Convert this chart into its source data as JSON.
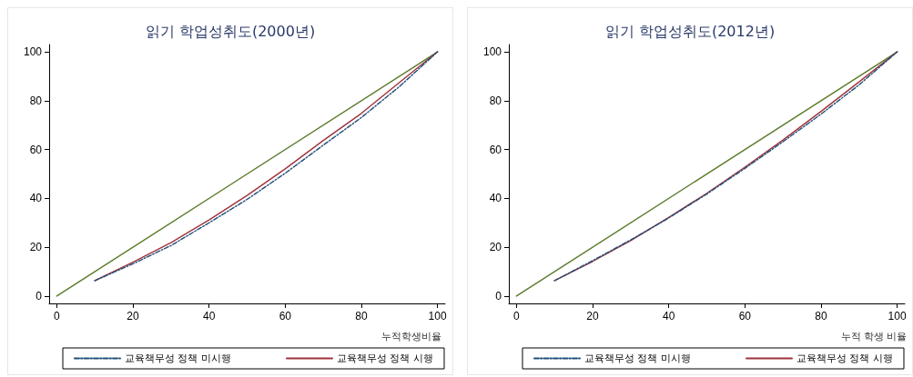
{
  "chart_data": [
    {
      "type": "line",
      "title": "읽기 학업성취도(2000년)",
      "xlabel": "누적학생비율",
      "xlim": [
        -2,
        102
      ],
      "ylim": [
        -3,
        103
      ],
      "xticks": [
        0,
        20,
        40,
        60,
        80,
        100
      ],
      "yticks": [
        0,
        20,
        40,
        60,
        80,
        100
      ],
      "grid": false,
      "legend": "bottom",
      "marker": "none",
      "series": [
        {
          "color": "#5a7a2a",
          "line_style": "solid",
          "x": [
            0,
            100
          ],
          "values": [
            0,
            100
          ]
        },
        {
          "name": "교육책무성 정책 미시행",
          "color": "#1f4e79",
          "line_style": "dashed",
          "x": [
            10,
            20,
            30,
            40,
            50,
            60,
            70,
            80,
            90,
            100
          ],
          "values": [
            6.3,
            13.2,
            20.7,
            30.0,
            39.6,
            50.3,
            61.8,
            73.1,
            85.8,
            100
          ]
        },
        {
          "name": "교육책무성 정책 시행",
          "color": "#a0323a",
          "line_style": "solid",
          "x": [
            10,
            20,
            30,
            40,
            50,
            60,
            70,
            80,
            90,
            100
          ],
          "values": [
            6.3,
            13.9,
            21.9,
            31.2,
            41.2,
            52.1,
            63.7,
            74.8,
            87.5,
            100
          ]
        }
      ]
    },
    {
      "type": "line",
      "title": "읽기 학업성취도(2012년)",
      "xlabel": "누적 학생 비율",
      "xlim": [
        -2,
        102
      ],
      "ylim": [
        -3,
        103
      ],
      "xticks": [
        0,
        20,
        40,
        60,
        80,
        100
      ],
      "yticks": [
        0,
        20,
        40,
        60,
        80,
        100
      ],
      "grid": false,
      "legend": "bottom",
      "marker": "none",
      "series": [
        {
          "color": "#5a7a2a",
          "line_style": "solid",
          "x": [
            0,
            100
          ],
          "values": [
            0,
            100
          ]
        },
        {
          "name": "교육책무성 정책 미시행",
          "color": "#1f4e79",
          "line_style": "dashed",
          "x": [
            10,
            20,
            30,
            40,
            50,
            60,
            70,
            80,
            90,
            100
          ],
          "values": [
            6.3,
            14.5,
            23.0,
            32.0,
            41.8,
            52.3,
            63.2,
            74.5,
            86.5,
            100
          ]
        },
        {
          "name": "교육책무성 정책 시행",
          "color": "#a0323a",
          "line_style": "solid",
          "x": [
            10,
            20,
            30,
            40,
            50,
            60,
            70,
            80,
            90,
            100
          ],
          "values": [
            6.3,
            14.2,
            22.7,
            32.2,
            42.1,
            52.8,
            63.9,
            75.6,
            87.7,
            100
          ]
        }
      ]
    }
  ]
}
